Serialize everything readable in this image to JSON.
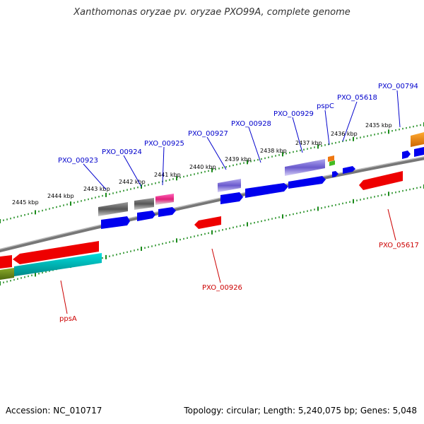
{
  "title": "Xanthomonas oryzae pv. oryzae PXO99A, complete genome",
  "accession_label": "Accession: NC_010717",
  "summary_label": "Topology: circular; Length: 5,240,075 bp; Genes: 5,048",
  "colors": {
    "backbone": "#888888",
    "ticks": "#1a8a1a",
    "label_top": "#0000cc",
    "label_bottom": "#cc0000"
  },
  "ticks": [
    "2445 kbp",
    "2444 kbp",
    "2443 kbp",
    "2442 kbp",
    "2441 kbp",
    "2440 kbp",
    "2439 kbp",
    "2438 kbp",
    "2437 kbp",
    "2436 kbp",
    "2435 kbp"
  ],
  "top_labels": [
    "PXO_00923",
    "PXO_00924",
    "PXO_00925",
    "PXO_00927",
    "PXO_00928",
    "PXO_00929",
    "pspC",
    "PXO_05618",
    "PXO_00794"
  ],
  "bottom_labels": [
    "ppsA",
    "PXO_00926",
    "PXO_05617"
  ]
}
